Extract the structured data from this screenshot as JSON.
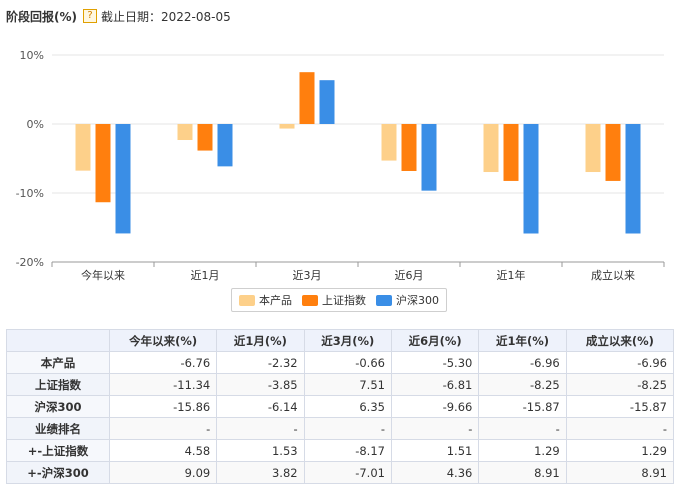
{
  "header": {
    "title": "阶段回报(%)",
    "help_glyph": "?",
    "date_label": "截止日期：2022-08-05"
  },
  "chart_data": {
    "type": "bar",
    "categories": [
      "今年以来",
      "近1月",
      "近3月",
      "近6月",
      "近1年",
      "成立以来"
    ],
    "series": [
      {
        "name": "本产品",
        "color": "#fdd08a",
        "values": [
          -6.76,
          -2.32,
          -0.66,
          -5.3,
          -6.96,
          -6.96
        ]
      },
      {
        "name": "上证指数",
        "color": "#ff7f0e",
        "values": [
          -11.34,
          -3.85,
          7.51,
          -6.81,
          -8.25,
          -8.25
        ]
      },
      {
        "name": "沪深300",
        "color": "#3a8ee6",
        "values": [
          -15.86,
          -6.14,
          6.35,
          -9.66,
          -15.87,
          -15.87
        ]
      }
    ],
    "ylim": [
      -20,
      10
    ],
    "yticks": [
      10,
      0,
      -10,
      -20
    ],
    "ytick_labels": [
      "10%",
      "0%",
      "-10%",
      "-20%"
    ],
    "grid": true,
    "legend": "bottom"
  },
  "table": {
    "headers": [
      "",
      "今年以来(%)",
      "近1月(%)",
      "近3月(%)",
      "近6月(%)",
      "近1年(%)",
      "成立以来(%)"
    ],
    "rows": [
      {
        "label": "本产品",
        "cells": [
          "-6.76",
          "-2.32",
          "-0.66",
          "-5.30",
          "-6.96",
          "-6.96"
        ]
      },
      {
        "label": "上证指数",
        "cells": [
          "-11.34",
          "-3.85",
          "7.51",
          "-6.81",
          "-8.25",
          "-8.25"
        ]
      },
      {
        "label": "沪深300",
        "cells": [
          "-15.86",
          "-6.14",
          "6.35",
          "-9.66",
          "-15.87",
          "-15.87"
        ]
      },
      {
        "label": "业绩排名",
        "cells": [
          "-",
          "-",
          "-",
          "-",
          "-",
          "-"
        ]
      },
      {
        "label": "+-上证指数",
        "cells": [
          "4.58",
          "1.53",
          "-8.17",
          "1.51",
          "1.29",
          "1.29"
        ]
      },
      {
        "label": "+-沪深300",
        "cells": [
          "9.09",
          "3.82",
          "-7.01",
          "4.36",
          "8.91",
          "8.91"
        ]
      }
    ]
  }
}
